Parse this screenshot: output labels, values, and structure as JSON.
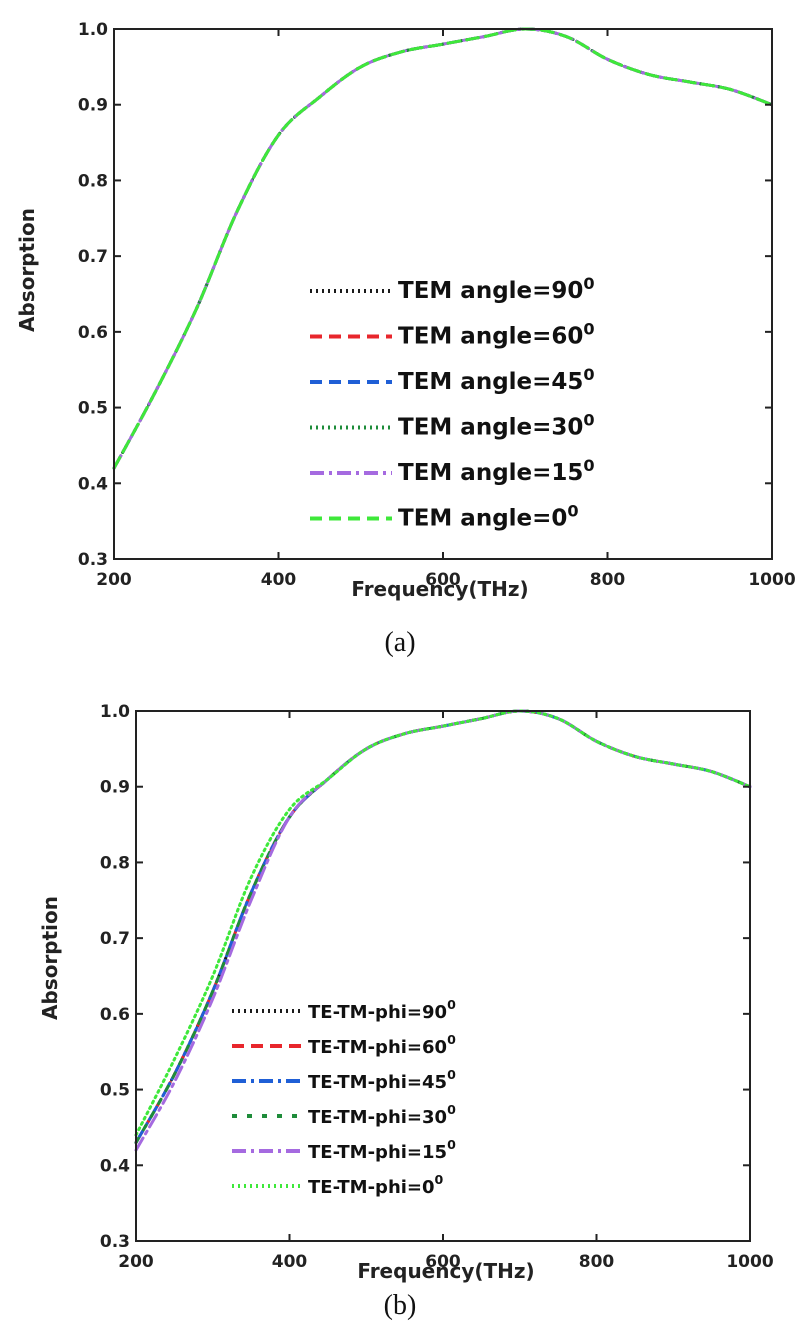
{
  "chart_data": [
    {
      "type": "line",
      "panel": "a",
      "caption": "(a)",
      "xlabel": "Frequency(THz)",
      "ylabel": "Absorption",
      "xlim": [
        200,
        1000
      ],
      "ylim": [
        0.3,
        1.0
      ],
      "xticks": [
        "200",
        "400",
        "600",
        "800",
        "1000"
      ],
      "yticks": [
        "0.3",
        "0.4",
        "0.5",
        "0.6",
        "0.7",
        "0.8",
        "0.9",
        "1.0"
      ],
      "legend_position": "center",
      "x": [
        200,
        250,
        300,
        350,
        400,
        450,
        500,
        550,
        600,
        650,
        700,
        750,
        800,
        850,
        900,
        950,
        1000
      ],
      "series": [
        {
          "name": "TEM angle=90",
          "sup": "0",
          "color": "#1a1a1a",
          "style": "dotted",
          "values": [
            0.42,
            0.52,
            0.63,
            0.76,
            0.86,
            0.91,
            0.95,
            0.97,
            0.98,
            0.99,
            1.0,
            0.99,
            0.96,
            0.94,
            0.93,
            0.92,
            0.9
          ]
        },
        {
          "name": "TEM angle=60",
          "sup": "0",
          "color": "#e8262c",
          "style": "dash",
          "values": [
            0.42,
            0.52,
            0.63,
            0.76,
            0.86,
            0.91,
            0.95,
            0.97,
            0.98,
            0.99,
            1.0,
            0.99,
            0.96,
            0.94,
            0.93,
            0.92,
            0.9
          ]
        },
        {
          "name": "TEM angle=45",
          "sup": "0",
          "color": "#1f5fd6",
          "style": "dash",
          "values": [
            0.42,
            0.52,
            0.63,
            0.76,
            0.86,
            0.91,
            0.95,
            0.97,
            0.98,
            0.99,
            1.0,
            0.99,
            0.96,
            0.94,
            0.93,
            0.92,
            0.9
          ]
        },
        {
          "name": "TEM angle=30",
          "sup": "0",
          "color": "#1e8c3a",
          "style": "dotted",
          "values": [
            0.42,
            0.52,
            0.63,
            0.76,
            0.86,
            0.91,
            0.95,
            0.97,
            0.98,
            0.99,
            1.0,
            0.99,
            0.96,
            0.94,
            0.93,
            0.92,
            0.9
          ]
        },
        {
          "name": "TEM angle=15",
          "sup": "0",
          "color": "#a56ae0",
          "style": "dashdot",
          "values": [
            0.42,
            0.52,
            0.63,
            0.76,
            0.86,
            0.91,
            0.95,
            0.97,
            0.98,
            0.99,
            1.0,
            0.99,
            0.96,
            0.94,
            0.93,
            0.92,
            0.9
          ]
        },
        {
          "name": "TEM angle=0",
          "sup": "0",
          "color": "#3ee83a",
          "style": "dash",
          "values": [
            0.42,
            0.52,
            0.63,
            0.76,
            0.86,
            0.91,
            0.95,
            0.97,
            0.98,
            0.99,
            1.0,
            0.99,
            0.96,
            0.94,
            0.93,
            0.92,
            0.9
          ]
        }
      ]
    },
    {
      "type": "line",
      "panel": "b",
      "caption": "(b)",
      "xlabel": "Frequency(THz)",
      "ylabel": "Absorption",
      "xlim": [
        200,
        1000
      ],
      "ylim": [
        0.3,
        1.0
      ],
      "xticks": [
        "200",
        "400",
        "600",
        "800",
        "1000"
      ],
      "yticks": [
        "0.3",
        "0.4",
        "0.5",
        "0.6",
        "0.7",
        "0.8",
        "0.9",
        "1.0"
      ],
      "legend_position": "lower-left",
      "x": [
        200,
        250,
        300,
        350,
        400,
        450,
        500,
        550,
        600,
        650,
        700,
        750,
        800,
        850,
        900,
        950,
        1000
      ],
      "series": [
        {
          "name": "TE-TM-phi=90",
          "sup": "0",
          "color": "#1a1a1a",
          "style": "dotted",
          "values": [
            0.43,
            0.52,
            0.63,
            0.76,
            0.86,
            0.91,
            0.95,
            0.97,
            0.98,
            0.99,
            1.0,
            0.99,
            0.96,
            0.94,
            0.93,
            0.92,
            0.9
          ]
        },
        {
          "name": "TE-TM-phi=60",
          "sup": "0",
          "color": "#e8262c",
          "style": "dash",
          "values": [
            0.43,
            0.52,
            0.63,
            0.76,
            0.86,
            0.91,
            0.95,
            0.97,
            0.98,
            0.99,
            1.0,
            0.99,
            0.96,
            0.94,
            0.93,
            0.92,
            0.9
          ]
        },
        {
          "name": "TE-TM-phi=45",
          "sup": "0",
          "color": "#1f5fd6",
          "style": "dashdot",
          "values": [
            0.43,
            0.52,
            0.63,
            0.76,
            0.86,
            0.91,
            0.95,
            0.97,
            0.98,
            0.99,
            1.0,
            0.99,
            0.96,
            0.94,
            0.93,
            0.92,
            0.9
          ]
        },
        {
          "name": "TE-TM-phi=30",
          "sup": "0",
          "color": "#1e8c3a",
          "style": "sparse",
          "values": [
            0.43,
            0.52,
            0.63,
            0.76,
            0.86,
            0.91,
            0.95,
            0.97,
            0.98,
            0.99,
            1.0,
            0.99,
            0.96,
            0.94,
            0.93,
            0.92,
            0.9
          ]
        },
        {
          "name": "TE-TM-phi=15",
          "sup": "0",
          "color": "#a56ae0",
          "style": "dashdot",
          "values": [
            0.42,
            0.51,
            0.62,
            0.75,
            0.86,
            0.91,
            0.95,
            0.97,
            0.98,
            0.99,
            1.0,
            0.99,
            0.96,
            0.94,
            0.93,
            0.92,
            0.9
          ]
        },
        {
          "name": "TE-TM-phi=0",
          "sup": "0",
          "color": "#3ee83a",
          "style": "dotted",
          "values": [
            0.44,
            0.54,
            0.65,
            0.78,
            0.87,
            0.91,
            0.95,
            0.97,
            0.98,
            0.99,
            1.0,
            0.99,
            0.96,
            0.94,
            0.93,
            0.92,
            0.9
          ]
        }
      ]
    }
  ]
}
